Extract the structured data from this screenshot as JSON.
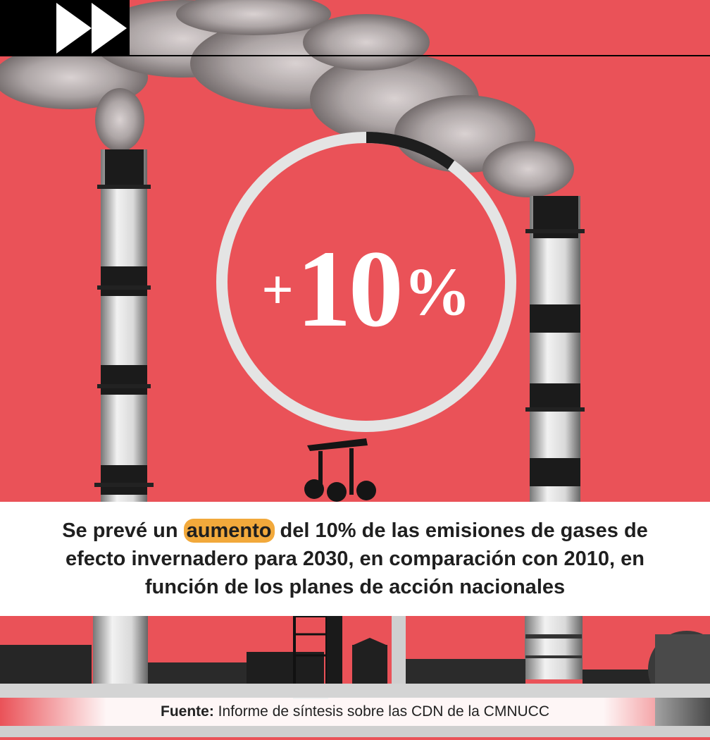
{
  "icons": {
    "header": "fast-forward-icon"
  },
  "stat": {
    "plus": "+",
    "number": "10",
    "percent": "%",
    "progress_fraction": 0.1
  },
  "caption": {
    "before": "Se prevé un ",
    "highlight": "aumento",
    "after": " del 10% de las emisiones de gases de efecto invernadero para 2030, en comparación con 2010, en función de los planes de acción nacionales"
  },
  "source": {
    "label": "Fuente:",
    "text": " Informe de síntesis sobre las CDN de la CMNUCC"
  },
  "colors": {
    "background": "#ea5258",
    "highlight": "#f2a93b",
    "ring_track": "#e4e4e4",
    "ring_fill": "#1e1e1e"
  }
}
